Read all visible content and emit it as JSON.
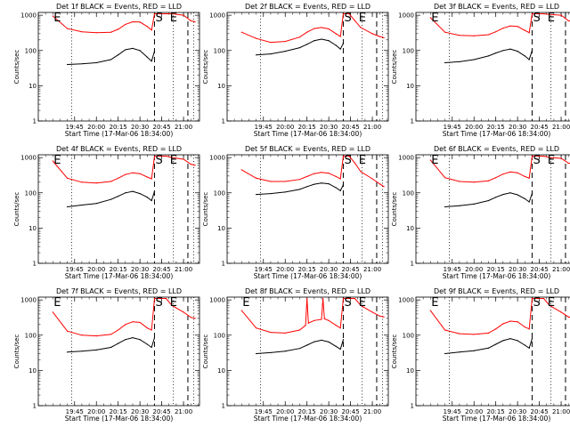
{
  "chart_data": [
    {
      "type": "line",
      "title": "Det 1f BLACK = Events, RED = LLD",
      "xlabel": "Start Time (17-Mar-06 18:34:00)",
      "ylabel": "Counts/sec",
      "x_ticks": [
        "19:45",
        "20:00",
        "20:15",
        "20:30",
        "20:45",
        "21:00"
      ],
      "y_ticks": [
        "1",
        "10",
        "100",
        "1000"
      ],
      "ylim": [
        1,
        1200
      ],
      "y_scale": "log",
      "markers": [
        {
          "label": "E",
          "x": "19:30"
        },
        {
          "label": "S",
          "x": "20:40"
        },
        {
          "label": "E",
          "x": "20:50"
        }
      ],
      "series": [
        {
          "color": "#ff0000",
          "x": [
            "19:30",
            "19:40",
            "19:50",
            "20:00",
            "20:10",
            "20:15",
            "20:20",
            "20:25",
            "20:30",
            "20:35",
            "20:38",
            "20:40",
            "20:44",
            "20:48",
            "20:52",
            "21:00",
            "21:05",
            "21:08"
          ],
          "values": [
            950,
            420,
            340,
            320,
            330,
            400,
            550,
            650,
            640,
            480,
            380,
            1100,
            1100,
            1100,
            1100,
            1000,
            700,
            650
          ]
        },
        {
          "color": "#000000",
          "x": [
            "19:40",
            "19:50",
            "20:00",
            "20:10",
            "20:15",
            "20:20",
            "20:25",
            "20:30",
            "20:35",
            "20:38",
            "20:40"
          ],
          "values": [
            40,
            42,
            45,
            55,
            75,
            105,
            115,
            100,
            65,
            50,
            95
          ]
        }
      ]
    },
    {
      "type": "line",
      "title": "Det 2f BLACK = Events, RED = LLD",
      "xlabel": "Start Time (17-Mar-06 18:34:00)",
      "ylabel": "Counts/sec",
      "x_ticks": [
        "19:45",
        "20:00",
        "20:15",
        "20:30",
        "20:45",
        "21:00"
      ],
      "y_ticks": [
        "1",
        "10",
        "100",
        "1000"
      ],
      "ylim": [
        1,
        1200
      ],
      "y_scale": "log",
      "markers": [
        {
          "label": "S",
          "x": "20:40"
        },
        {
          "label": "E",
          "x": "20:50"
        }
      ],
      "series": [
        {
          "color": "#ff0000",
          "x": [
            "19:30",
            "19:40",
            "19:50",
            "20:00",
            "20:10",
            "20:15",
            "20:20",
            "20:25",
            "20:30",
            "20:35",
            "20:38",
            "20:40",
            "20:44",
            "20:48",
            "20:52",
            "21:00",
            "21:05",
            "21:08"
          ],
          "values": [
            330,
            220,
            170,
            180,
            240,
            330,
            420,
            450,
            410,
            300,
            250,
            1100,
            1100,
            700,
            450,
            300,
            250,
            230
          ]
        },
        {
          "color": "#000000",
          "x": [
            "19:40",
            "19:50",
            "20:00",
            "20:10",
            "20:15",
            "20:20",
            "20:25",
            "20:30",
            "20:35",
            "20:38",
            "20:40"
          ],
          "values": [
            75,
            80,
            95,
            120,
            150,
            190,
            210,
            190,
            140,
            110,
            160
          ]
        }
      ]
    },
    {
      "type": "line",
      "title": "Det 3f BLACK = Events, RED = LLD",
      "xlabel": "Start Time (17-Mar-06 18:34:00)",
      "ylabel": "Counts/sec",
      "x_ticks": [
        "19:45",
        "20:00",
        "20:15",
        "20:30",
        "20:45",
        "21:00"
      ],
      "y_ticks": [
        "1",
        "10",
        "100",
        "1000"
      ],
      "ylim": [
        1,
        1200
      ],
      "y_scale": "log",
      "markers": [
        {
          "label": "E",
          "x": "19:30"
        },
        {
          "label": "S",
          "x": "20:40"
        },
        {
          "label": "E",
          "x": "20:50"
        }
      ],
      "series": [
        {
          "color": "#ff0000",
          "x": [
            "19:30",
            "19:40",
            "19:50",
            "20:00",
            "20:10",
            "20:15",
            "20:20",
            "20:25",
            "20:30",
            "20:35",
            "20:38",
            "20:40",
            "20:44",
            "20:48",
            "20:52",
            "21:00",
            "21:05",
            "21:08"
          ],
          "values": [
            850,
            330,
            270,
            260,
            280,
            340,
            430,
            500,
            480,
            370,
            320,
            1100,
            1100,
            1100,
            1050,
            1000,
            700,
            650
          ]
        },
        {
          "color": "#000000",
          "x": [
            "19:40",
            "19:50",
            "20:00",
            "20:10",
            "20:15",
            "20:20",
            "20:25",
            "20:30",
            "20:35",
            "20:38",
            "20:40"
          ],
          "values": [
            45,
            48,
            55,
            70,
            85,
            100,
            110,
            95,
            70,
            55,
            100
          ]
        }
      ]
    },
    {
      "type": "line",
      "title": "Det 4f BLACK = Events, RED = LLD",
      "xlabel": "Start Time (17-Mar-06 18:34:00)",
      "ylabel": "Counts/sec",
      "x_ticks": [
        "19:45",
        "20:00",
        "20:15",
        "20:30",
        "20:45",
        "21:00"
      ],
      "y_ticks": [
        "1",
        "10",
        "100",
        "1000"
      ],
      "ylim": [
        1,
        1200
      ],
      "y_scale": "log",
      "markers": [
        {
          "label": "E",
          "x": "19:30"
        },
        {
          "label": "S",
          "x": "20:40"
        },
        {
          "label": "E",
          "x": "20:50"
        }
      ],
      "series": [
        {
          "color": "#ff0000",
          "x": [
            "19:30",
            "19:40",
            "19:50",
            "20:00",
            "20:10",
            "20:15",
            "20:20",
            "20:25",
            "20:30",
            "20:35",
            "20:38",
            "20:40",
            "20:44",
            "20:48",
            "20:52",
            "21:00",
            "21:05",
            "21:08"
          ],
          "values": [
            800,
            260,
            200,
            190,
            210,
            260,
            330,
            370,
            350,
            280,
            250,
            1100,
            1100,
            1100,
            1000,
            900,
            650,
            600
          ]
        },
        {
          "color": "#000000",
          "x": [
            "19:40",
            "19:50",
            "20:00",
            "20:10",
            "20:15",
            "20:20",
            "20:25",
            "20:30",
            "20:35",
            "20:38",
            "20:40"
          ],
          "values": [
            40,
            45,
            50,
            65,
            80,
            100,
            110,
            95,
            75,
            60,
            110
          ]
        }
      ]
    },
    {
      "type": "line",
      "title": "Det 5f BLACK = Events, RED = LLD",
      "xlabel": "Start Time (17-Mar-06 18:34:00)",
      "ylabel": "Counts/sec",
      "x_ticks": [
        "19:45",
        "20:00",
        "20:15",
        "20:30",
        "20:45",
        "21:00"
      ],
      "y_ticks": [
        "1",
        "10",
        "100",
        "1000"
      ],
      "ylim": [
        1,
        1200
      ],
      "y_scale": "log",
      "markers": [
        {
          "label": "S",
          "x": "20:40"
        },
        {
          "label": "E",
          "x": "20:50"
        }
      ],
      "series": [
        {
          "color": "#ff0000",
          "x": [
            "19:30",
            "19:40",
            "19:50",
            "20:00",
            "20:10",
            "20:15",
            "20:20",
            "20:25",
            "20:30",
            "20:35",
            "20:38",
            "20:40",
            "20:44",
            "20:48",
            "20:52",
            "21:00",
            "21:05",
            "21:08"
          ],
          "values": [
            450,
            260,
            210,
            210,
            240,
            290,
            350,
            380,
            360,
            290,
            250,
            1100,
            1100,
            700,
            400,
            250,
            180,
            150
          ]
        },
        {
          "color": "#000000",
          "x": [
            "19:40",
            "19:50",
            "20:00",
            "20:10",
            "20:15",
            "20:20",
            "20:25",
            "20:30",
            "20:35",
            "20:38",
            "20:40"
          ],
          "values": [
            90,
            95,
            105,
            125,
            150,
            175,
            190,
            180,
            140,
            115,
            170
          ]
        }
      ]
    },
    {
      "type": "line",
      "title": "Det 6f BLACK = Events, RED = LLD",
      "xlabel": "Start Time (17-Mar-06 18:34:00)",
      "ylabel": "Counts/sec",
      "x_ticks": [
        "19:45",
        "20:00",
        "20:15",
        "20:30",
        "20:45",
        "21:00"
      ],
      "y_ticks": [
        "1",
        "10",
        "100",
        "1000"
      ],
      "ylim": [
        1,
        1200
      ],
      "y_scale": "log",
      "markers": [
        {
          "label": "E",
          "x": "19:30"
        },
        {
          "label": "S",
          "x": "20:40"
        },
        {
          "label": "E",
          "x": "20:50"
        }
      ],
      "series": [
        {
          "color": "#ff0000",
          "x": [
            "19:30",
            "19:40",
            "19:50",
            "20:00",
            "20:10",
            "20:15",
            "20:20",
            "20:25",
            "20:30",
            "20:35",
            "20:38",
            "20:40",
            "20:44",
            "20:48",
            "20:52",
            "21:00",
            "21:05",
            "21:08"
          ],
          "values": [
            850,
            270,
            210,
            200,
            220,
            270,
            340,
            390,
            370,
            290,
            260,
            1100,
            1100,
            1100,
            1000,
            950,
            700,
            650
          ]
        },
        {
          "color": "#000000",
          "x": [
            "19:40",
            "19:50",
            "20:00",
            "20:10",
            "20:15",
            "20:20",
            "20:25",
            "20:30",
            "20:35",
            "20:38",
            "20:40"
          ],
          "values": [
            40,
            43,
            48,
            60,
            75,
            90,
            100,
            88,
            68,
            55,
            95
          ]
        }
      ]
    },
    {
      "type": "line",
      "title": "Det 7f BLACK = Events, RED = LLD",
      "xlabel": "Start Time (17-Mar-06 18:34:00)",
      "ylabel": "Counts/sec",
      "x_ticks": [
        "19:45",
        "20:00",
        "20:15",
        "20:30",
        "20:45",
        "21:00"
      ],
      "y_ticks": [
        "1",
        "10",
        "100",
        "1000"
      ],
      "ylim": [
        1,
        1200
      ],
      "y_scale": "log",
      "markers": [
        {
          "label": "E",
          "x": "19:30"
        },
        {
          "label": "S",
          "x": "20:40"
        },
        {
          "label": "E",
          "x": "20:50"
        }
      ],
      "series": [
        {
          "color": "#ff0000",
          "x": [
            "19:30",
            "19:40",
            "19:50",
            "20:00",
            "20:10",
            "20:15",
            "20:20",
            "20:25",
            "20:30",
            "20:35",
            "20:38",
            "20:40",
            "20:44",
            "20:48",
            "20:52",
            "21:00",
            "21:05",
            "21:08"
          ],
          "values": [
            450,
            130,
            100,
            95,
            105,
            140,
            200,
            240,
            230,
            160,
            140,
            1100,
            1100,
            1100,
            700,
            450,
            320,
            300
          ]
        },
        {
          "color": "#000000",
          "x": [
            "19:40",
            "19:50",
            "20:00",
            "20:10",
            "20:15",
            "20:20",
            "20:25",
            "20:30",
            "20:35",
            "20:38",
            "20:40"
          ],
          "values": [
            33,
            35,
            38,
            45,
            58,
            75,
            85,
            75,
            55,
            45,
            85
          ]
        }
      ]
    },
    {
      "type": "line",
      "title": "Det 8f BLACK = Events, RED = LLD",
      "xlabel": "Start Time (17-Mar-06 18:34:00)",
      "ylabel": "Counts/sec",
      "x_ticks": [
        "19:45",
        "20:00",
        "20:15",
        "20:30",
        "20:45",
        "21:00"
      ],
      "y_ticks": [
        "1",
        "10",
        "100",
        "1000"
      ],
      "ylim": [
        1,
        1200
      ],
      "y_scale": "log",
      "markers": [
        {
          "label": "E",
          "x": "19:30"
        },
        {
          "label": "S",
          "x": "20:40"
        },
        {
          "label": "E",
          "x": "20:50"
        }
      ],
      "series": [
        {
          "color": "#ff0000",
          "x": [
            "19:30",
            "19:40",
            "19:50",
            "20:00",
            "20:10",
            "20:14",
            "20:15",
            "20:16",
            "20:20",
            "20:25",
            "20:26",
            "20:27",
            "20:30",
            "20:35",
            "20:38",
            "20:40",
            "20:44",
            "20:48",
            "20:52",
            "21:00",
            "21:05",
            "21:08"
          ],
          "values": [
            500,
            160,
            120,
            115,
            140,
            190,
            1100,
            220,
            260,
            280,
            1100,
            290,
            260,
            190,
            160,
            1100,
            1100,
            1100,
            700,
            450,
            350,
            330
          ]
        },
        {
          "color": "#000000",
          "x": [
            "19:40",
            "19:50",
            "20:00",
            "20:10",
            "20:15",
            "20:20",
            "20:25",
            "20:30",
            "20:35",
            "20:38",
            "20:40"
          ],
          "values": [
            30,
            32,
            35,
            42,
            52,
            65,
            72,
            64,
            48,
            40,
            75
          ]
        }
      ]
    },
    {
      "type": "line",
      "title": "Det 9f BLACK = Events, RED = LLD",
      "xlabel": "Start Time (17-Mar-06 18:34:00)",
      "ylabel": "Counts/sec",
      "x_ticks": [
        "19:45",
        "20:00",
        "20:15",
        "20:30",
        "20:45",
        "21:00"
      ],
      "y_ticks": [
        "1",
        "10",
        "100",
        "1000"
      ],
      "ylim": [
        1,
        1200
      ],
      "y_scale": "log",
      "markers": [
        {
          "label": "E",
          "x": "19:30"
        },
        {
          "label": "S",
          "x": "20:40"
        },
        {
          "label": "E",
          "x": "20:50"
        }
      ],
      "series": [
        {
          "color": "#ff0000",
          "x": [
            "19:30",
            "19:40",
            "19:50",
            "20:00",
            "20:10",
            "20:15",
            "20:20",
            "20:25",
            "20:30",
            "20:35",
            "20:38",
            "20:40",
            "20:44",
            "20:48",
            "20:52",
            "21:00",
            "21:05",
            "21:08"
          ],
          "values": [
            500,
            140,
            110,
            105,
            115,
            150,
            210,
            250,
            240,
            170,
            150,
            1100,
            1100,
            1100,
            700,
            450,
            330,
            300
          ]
        },
        {
          "color": "#000000",
          "x": [
            "19:40",
            "19:50",
            "20:00",
            "20:10",
            "20:15",
            "20:20",
            "20:25",
            "20:30",
            "20:35",
            "20:38",
            "20:40"
          ],
          "values": [
            30,
            33,
            36,
            43,
            55,
            70,
            80,
            70,
            52,
            43,
            80
          ]
        }
      ]
    }
  ]
}
